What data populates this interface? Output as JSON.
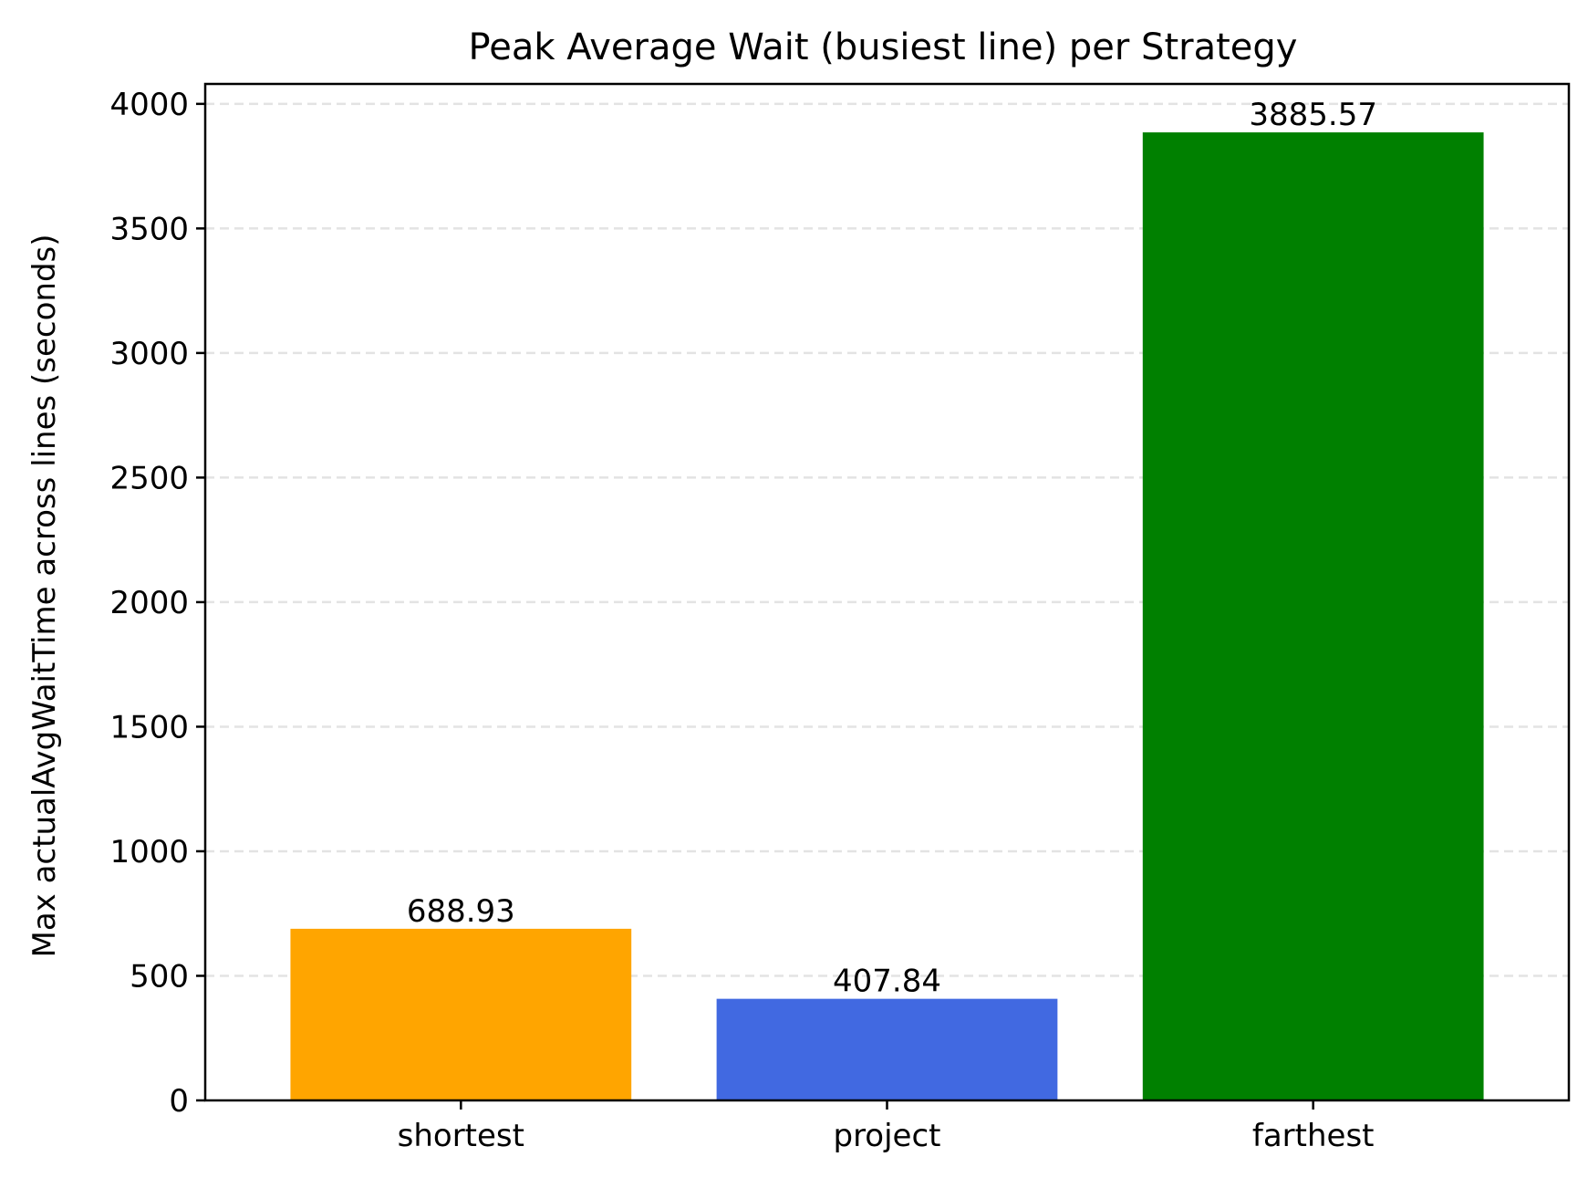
{
  "chart_data": {
    "type": "bar",
    "title": "Peak Average Wait (busiest line) per Strategy",
    "xlabel": "",
    "ylabel": "Max actualAvgWaitTime across lines (seconds)",
    "categories": [
      "shortest",
      "project",
      "farthest"
    ],
    "values": [
      688.93,
      407.84,
      3885.57
    ],
    "value_labels": [
      "688.93",
      "407.84",
      "3885.57"
    ],
    "colors": [
      "#FFA500",
      "#4169E1",
      "#008000"
    ],
    "ylim": [
      0,
      4080
    ],
    "yticks": [
      0,
      500,
      1000,
      1500,
      2000,
      2500,
      3000,
      3500,
      4000
    ],
    "ytick_labels": [
      "0",
      "500",
      "1000",
      "1500",
      "2000",
      "2500",
      "3000",
      "3500",
      "4000"
    ],
    "grid": "y-dashed",
    "legend": "none"
  }
}
